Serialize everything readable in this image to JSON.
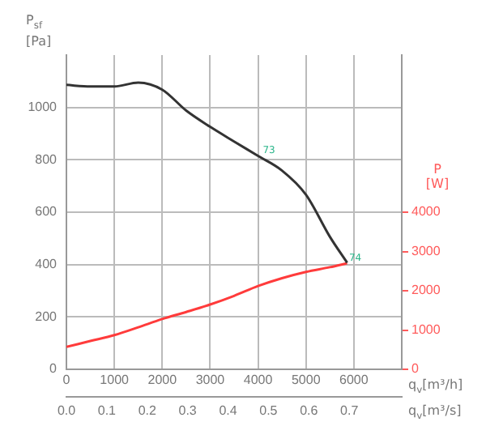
{
  "chart_data": {
    "type": "line",
    "xlabel": "q$_{v}$[m³/h]",
    "x2label": "q$_{v}$[m³/s]",
    "ylabel": "P$_{sf}$ [Pa]",
    "y2label": "P [W]",
    "x": [
      0,
      500,
      1000,
      1500,
      2000,
      2500,
      3000,
      3500,
      4000,
      4500,
      5000,
      5500,
      5860
    ],
    "series": [
      {
        "color": "#333333",
        "values": [
          1086,
          1080,
          1080,
          1095,
          1068,
          988,
          926,
          870,
          815,
          759,
          667,
          506,
          407
        ]
      },
      {
        "color": "#ff3b3b",
        "axis": "y2",
        "values": [
          570,
          720,
          870,
          1070,
          1280,
          1460,
          1650,
          1870,
          2120,
          2320,
          2480,
          2600,
          2700
        ]
      }
    ],
    "xlim": [
      0,
      7000
    ],
    "xticks": [
      0,
      1000,
      2000,
      3000,
      4000,
      5000,
      6000
    ],
    "x2lim": [
      0,
      0.83
    ],
    "x2ticks": [
      {
        "value": 0,
        "label": "0.0"
      },
      0.1,
      0.2,
      0.3,
      0.4,
      0.5,
      0.6,
      0.7
    ],
    "ylim": [
      0,
      1200
    ],
    "yticks": [
      0,
      200,
      400,
      600,
      800,
      1000
    ],
    "y2lim": [
      0,
      8000
    ],
    "y2ticks": [
      0,
      1000,
      2000,
      3000,
      4000
    ],
    "annotations": [
      {
        "text": "73",
        "x": 4100,
        "y": 835
      },
      {
        "text": "74",
        "x": 5900,
        "y": 425
      }
    ],
    "grid": true,
    "legend": false,
    "marker": "none",
    "line_style": "solid"
  }
}
